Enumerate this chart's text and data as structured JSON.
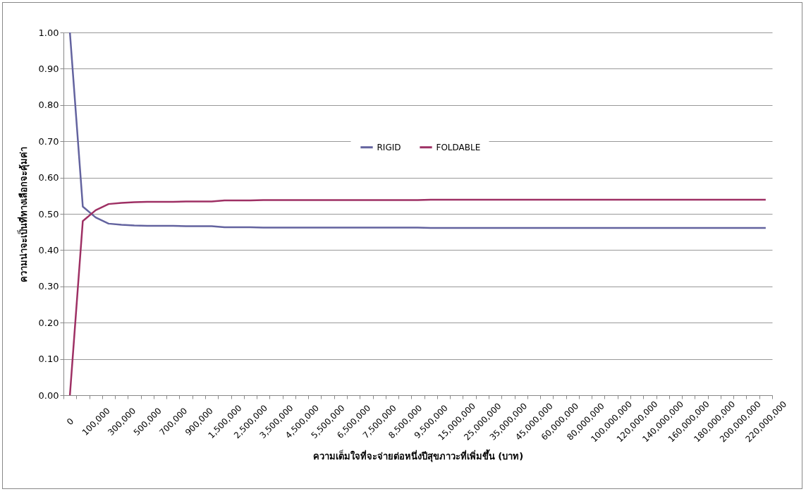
{
  "chart_data": {
    "type": "line",
    "xlabel": "ความเต็มใจที่จะจ่ายต่อหนึ่งปีสุขภาวะที่เพิ่มขึ้น (บาท)",
    "ylabel": "ความน่าจะเป็นที่ทางเลือกจะคุ้มค่า",
    "categories": [
      "0",
      null,
      "100,000",
      null,
      "300,000",
      null,
      "500,000",
      null,
      "700,000",
      null,
      "900,000",
      null,
      "1,500,000",
      null,
      "2,500,000",
      null,
      "3,500,000",
      null,
      "4,500,000",
      null,
      "5,500,000",
      null,
      "6,500,000",
      null,
      "7,500,000",
      null,
      "8,500,000",
      null,
      "9,500,000",
      null,
      "15,000,000",
      null,
      "25,000,000",
      null,
      "35,000,000",
      null,
      "45,000,000",
      null,
      "60,000,000",
      null,
      "80,000,000",
      null,
      "100,000,000",
      null,
      "120,000,000",
      null,
      "140,000,000",
      null,
      "160,000,000",
      null,
      "180,000,000",
      null,
      "200,000,000",
      null,
      "220,000,000"
    ],
    "series": [
      {
        "name": "RIGID",
        "color": "#63639f",
        "values": [
          1.0,
          0.52,
          0.49,
          0.473,
          0.47,
          0.468,
          0.467,
          0.467,
          0.467,
          0.466,
          0.466,
          0.466,
          0.463,
          0.463,
          0.463,
          0.462,
          0.462,
          0.462,
          0.462,
          0.462,
          0.462,
          0.462,
          0.462,
          0.462,
          0.462,
          0.462,
          0.462,
          0.462,
          0.461,
          0.461,
          0.461,
          0.461,
          0.461,
          0.461,
          0.461,
          0.461,
          0.461,
          0.461,
          0.461,
          0.461,
          0.461,
          0.461,
          0.461,
          0.461,
          0.461,
          0.461,
          0.461,
          0.461,
          0.461,
          0.461,
          0.461,
          0.461,
          0.461,
          0.461,
          0.461
        ]
      },
      {
        "name": "FOLDABLE",
        "color": "#9e3064",
        "values": [
          0.0,
          0.48,
          0.51,
          0.527,
          0.53,
          0.532,
          0.533,
          0.533,
          0.533,
          0.534,
          0.534,
          0.534,
          0.537,
          0.537,
          0.537,
          0.538,
          0.538,
          0.538,
          0.538,
          0.538,
          0.538,
          0.538,
          0.538,
          0.538,
          0.538,
          0.538,
          0.538,
          0.538,
          0.539,
          0.539,
          0.539,
          0.539,
          0.539,
          0.539,
          0.539,
          0.539,
          0.539,
          0.539,
          0.539,
          0.539,
          0.539,
          0.539,
          0.539,
          0.539,
          0.539,
          0.539,
          0.539,
          0.539,
          0.539,
          0.539,
          0.539,
          0.539,
          0.539,
          0.539,
          0.539
        ]
      }
    ],
    "ylim": [
      0,
      1
    ],
    "yticks": [
      {
        "value": 0,
        "label": "0.00"
      },
      {
        "value": 0.1,
        "label": "0.10"
      },
      {
        "value": 0.2,
        "label": "0.20"
      },
      {
        "value": 0.3,
        "label": "0.30"
      },
      {
        "value": 0.4,
        "label": "0.40"
      },
      {
        "value": 0.5,
        "label": "0.50"
      },
      {
        "value": 0.6,
        "label": "0.60"
      },
      {
        "value": 0.7,
        "label": "0.70"
      },
      {
        "value": 0.8,
        "label": "0.80"
      },
      {
        "value": 0.9,
        "label": "0.90"
      },
      {
        "value": 1,
        "label": "1.00"
      }
    ],
    "grid": "y",
    "legend": "top",
    "marker": "none",
    "line_style": "solid"
  }
}
